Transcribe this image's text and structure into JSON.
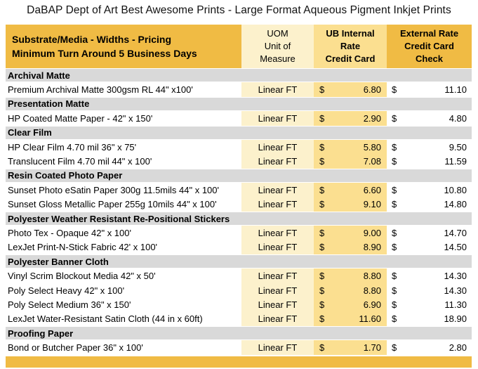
{
  "title": "DaBAP Dept of Art Best Awesome Prints - Large Format Aqueous Pigment Inkjet Prints",
  "currency": "$",
  "colors": {
    "gold": "#F0BB44",
    "light_gold": "#FBDF90",
    "cream": "#FCF1CC",
    "section_gray": "#D9D9D9"
  },
  "header": {
    "substrate": {
      "lines": [
        "Substrate/Media - Widths - Pricing",
        "Minimum Turn Around 5 Business Days"
      ]
    },
    "uom": {
      "lines": [
        "UOM",
        "Unit of",
        "Measure"
      ]
    },
    "internal": {
      "lines": [
        "UB Internal",
        "Rate",
        "Credit Card"
      ]
    },
    "external": {
      "lines": [
        "External Rate",
        "Credit Card",
        "Check"
      ]
    }
  },
  "sections": [
    {
      "title": "Archival Matte",
      "rows": [
        {
          "item": "Premium Archival Matte 300gsm RL 44\" x100'",
          "uom": "Linear FT",
          "internal": "6.80",
          "external": "11.10"
        }
      ]
    },
    {
      "title": "Presentation Matte",
      "rows": [
        {
          "item": "HP Coated Matte Paper - 42\" x 150'",
          "uom": "Linear FT",
          "internal": "2.90",
          "external": "4.80"
        }
      ]
    },
    {
      "title": "Clear Film",
      "rows": [
        {
          "item": "HP Clear Film 4.70 mil 36\" x 75'",
          "uom": "Linear FT",
          "internal": "5.80",
          "external": "9.50"
        },
        {
          "item": "Translucent Film 4.70 mil 44\" x 100'",
          "uom": "Linear FT",
          "internal": "7.08",
          "external": "11.59"
        }
      ]
    },
    {
      "title": "Resin Coated Photo Paper",
      "rows": [
        {
          "item": "Sunset Photo eSatin Paper 300g 11.5mils 44\" x 100'",
          "uom": "Linear FT",
          "internal": "6.60",
          "external": "10.80"
        },
        {
          "item": "Sunset Gloss Metallic Paper 255g 10mils 44\" x 100'",
          "uom": "Linear FT",
          "internal": "9.10",
          "external": "14.80"
        }
      ]
    },
    {
      "title": "Polyester Weather Resistant Re-Positional Stickers",
      "rows": [
        {
          "item": "Photo Tex - Opaque 42\" x 100'",
          "uom": "Linear FT",
          "internal": "9.00",
          "external": "14.70"
        },
        {
          "item": "LexJet Print-N-Stick Fabric 42' x 100'",
          "uom": "Linear FT",
          "internal": "8.90",
          "external": "14.50"
        }
      ]
    },
    {
      "title": "Polyester Banner Cloth",
      "rows": [
        {
          "item": "Vinyl Scrim Blockout Media 42\" x 50'",
          "uom": "Linear FT",
          "internal": "8.80",
          "external": "14.30"
        },
        {
          "item": "Poly Select Heavy 42\" x 100'",
          "uom": "Linear FT",
          "internal": "8.80",
          "external": "14.30"
        },
        {
          "item": "Poly Select Medium 36\" x 150'",
          "uom": "Linear FT",
          "internal": "6.90",
          "external": "11.30"
        },
        {
          "item": "LexJet Water-Resistant Satin Cloth (44 in x 60ft)",
          "uom": "Linear FT",
          "internal": "11.60",
          "external": "18.90"
        }
      ]
    },
    {
      "title": "Proofing Paper",
      "rows": [
        {
          "item": "Bond or Butcher Paper 36\" x 100'",
          "uom": "Linear FT",
          "internal": "1.70",
          "external": "2.80"
        }
      ]
    }
  ]
}
